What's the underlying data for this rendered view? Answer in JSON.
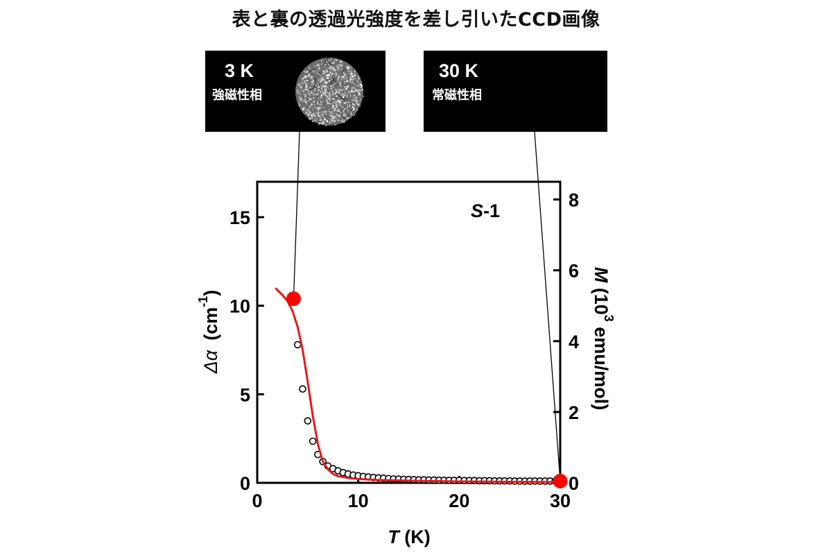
{
  "title": "表と裏の透過光強度を差し引いたCCD画像",
  "ccd_images": [
    {
      "temperature": "3 K",
      "phase": "強磁性相",
      "speckle_density": 1.0
    },
    {
      "temperature": "30 K",
      "phase": "常磁性相",
      "speckle_density": 0.0
    }
  ],
  "chart_data": {
    "type": "scatter",
    "annotation_italic": "S",
    "annotation_rest": "-1",
    "x_axis": {
      "label_italic": "T",
      "label_rest": " (K)",
      "range": [
        0,
        30
      ],
      "ticks": [
        0,
        10,
        20,
        30
      ]
    },
    "y_left": {
      "label_symbol": "Δα",
      "label_unit": "(cm",
      "label_exp": "-1",
      "label_close": ")",
      "range": [
        0,
        17
      ],
      "ticks": [
        0,
        5,
        10,
        15
      ]
    },
    "y_right": {
      "label_italic": "M",
      "label_unit": " (10",
      "label_exp": "3",
      "label_rest": " emu/mol)",
      "range": [
        0,
        8.5
      ],
      "ticks": [
        0,
        2,
        4,
        6,
        8
      ]
    },
    "colors": {
      "curve": "#e31a1c",
      "markers": "#ff0000",
      "points": "#000000"
    },
    "magnetization_curve": {
      "name": "M",
      "axis": "right",
      "x": [
        1.8,
        2.5,
        3.0,
        3.5,
        4.0,
        4.5,
        5.0,
        5.5,
        6.0,
        6.5,
        7.0,
        7.5,
        8.0,
        9.0,
        10.0,
        12.0,
        15.0,
        20.0,
        25.0,
        30.0
      ],
      "y": [
        5.5,
        5.3,
        5.13,
        4.85,
        4.4,
        3.75,
        2.85,
        1.9,
        1.1,
        0.6,
        0.38,
        0.25,
        0.19,
        0.14,
        0.11,
        0.08,
        0.06,
        0.04,
        0.03,
        0.025
      ]
    },
    "absorption_points": {
      "name": "Δα",
      "axis": "left",
      "x": [
        4.0,
        4.5,
        5.0,
        5.5,
        6.0,
        6.5,
        7.0,
        7.5,
        8.0,
        8.5,
        9.0,
        9.5,
        10.0,
        10.5,
        11.0,
        11.5,
        12.0,
        12.5,
        13.0,
        13.5,
        14.0,
        14.5,
        15.0,
        15.5,
        16.0,
        16.5,
        17.0,
        17.5,
        18.0,
        18.5,
        19.0,
        19.5,
        20.0,
        20.5,
        21.0,
        21.5,
        22.0,
        22.5,
        23.0,
        23.5,
        24.0,
        24.5,
        25.0,
        25.5,
        26.0,
        26.5,
        27.0,
        27.5,
        28.0,
        28.5,
        29.0,
        29.5
      ],
      "y": [
        7.8,
        5.3,
        3.5,
        2.35,
        1.6,
        1.2,
        0.95,
        0.8,
        0.68,
        0.58,
        0.5,
        0.44,
        0.4,
        0.36,
        0.33,
        0.3,
        0.28,
        0.26,
        0.24,
        0.22,
        0.21,
        0.2,
        0.19,
        0.18,
        0.17,
        0.17,
        0.16,
        0.16,
        0.15,
        0.15,
        0.14,
        0.14,
        0.14,
        0.13,
        0.13,
        0.13,
        0.12,
        0.12,
        0.12,
        0.11,
        0.11,
        0.11,
        0.11,
        0.1,
        0.1,
        0.1,
        0.1,
        0.1,
        0.1,
        0.1,
        0.1,
        0.1
      ]
    },
    "highlighted_points": [
      {
        "x": 3.6,
        "y": 10.4,
        "axis": "left",
        "linked_image": 0
      },
      {
        "x": 30.0,
        "y": 0.1,
        "axis": "left",
        "linked_image": 1
      }
    ]
  }
}
